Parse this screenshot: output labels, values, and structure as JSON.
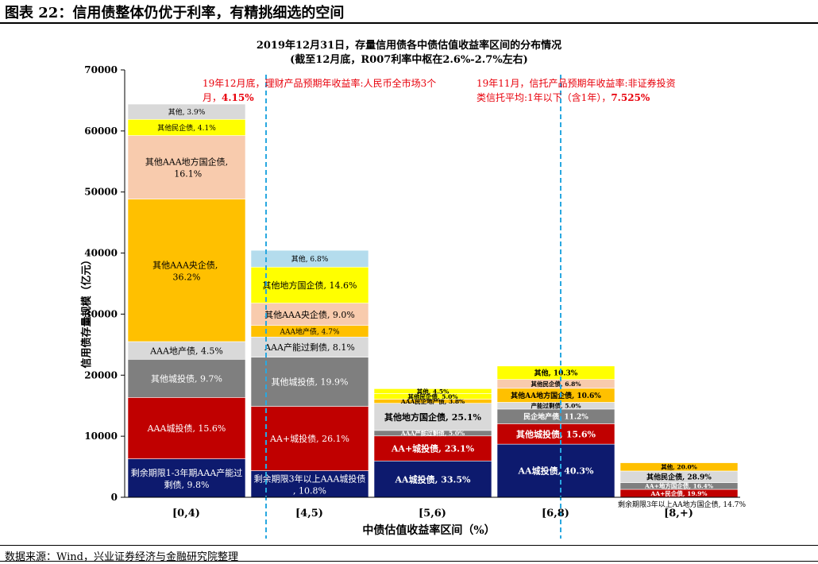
{
  "figure": {
    "title": "图表 22：信用债整体仍优于利率，有精挑细选的空间",
    "source": "数据来源：Wind，兴业证券经济与金融研究院整理"
  },
  "chart_data": {
    "type": "bar",
    "stacked": true,
    "title": "2019年12月31日，存量信用债各中债估值收益率区间的分布情况",
    "subtitle": "(截至12月底，R007利率中枢在2.6%-2.7%左右)",
    "xlabel": "中债估值收益率区间（%）",
    "ylabel": "信用债存量规模（亿元）",
    "ylim": [
      0,
      70000
    ],
    "yticks": [
      0,
      10000,
      20000,
      30000,
      40000,
      50000,
      60000,
      70000
    ],
    "grid": false,
    "legend": "none",
    "colors": {
      "navy": "#0d1a6e",
      "red": "#c00000",
      "grey": "#7f7f7f",
      "lightgrey": "#d9d9d9",
      "orange": "#ffc000",
      "peach": "#f8cbad",
      "yellow": "#ffff00",
      "lightblue": "#b4dced",
      "refline": "#29a8e0",
      "annotation": "#e8000b"
    },
    "categories": [
      "[0,4)",
      "[4,5)",
      "[5,6)",
      "[6,8)",
      "[8,+)"
    ],
    "stacks": [
      {
        "category": "[0,4)",
        "segments": [
          {
            "label": "剩余期限1-3年期AAA产能过剩债, 9.8%",
            "value": 6300,
            "color": "navy",
            "text_color": "#ffffff"
          },
          {
            "label": "AAA城投债, 15.6%",
            "value": 10050,
            "color": "red",
            "text_color": "#ffffff"
          },
          {
            "label": "其他城投债, 9.7%",
            "value": 6250,
            "color": "grey",
            "text_color": "#ffffff"
          },
          {
            "label": "AAA地产债, 4.5%",
            "value": 2900,
            "color": "lightgrey",
            "text_color": "#000000"
          },
          {
            "label": "其他AAA央企债, 36.2%",
            "value": 23350,
            "color": "orange",
            "text_color": "#000000"
          },
          {
            "label": "其他AAA地方国企债, 16.1%",
            "value": 10400,
            "color": "peach",
            "text_color": "#000000"
          },
          {
            "label": "其他民企债, 4.1%",
            "value": 2650,
            "color": "yellow",
            "text_color": "#000000"
          },
          {
            "label": "其他, 3.9%",
            "value": 2500,
            "color": "lightgrey",
            "text_color": "#000000"
          }
        ]
      },
      {
        "category": "[4,5)",
        "segments": [
          {
            "label": "剩余期限3年以上AAA城投债, 10.8%",
            "value": 4350,
            "color": "navy",
            "text_color": "#ffffff"
          },
          {
            "label": "AA+城投债, 26.1%",
            "value": 10550,
            "color": "red",
            "text_color": "#ffffff"
          },
          {
            "label": "其他城投债, 19.9%",
            "value": 8050,
            "color": "grey",
            "text_color": "#ffffff"
          },
          {
            "label": "AAA产能过剩债, 8.1%",
            "value": 3300,
            "color": "lightgrey",
            "text_color": "#000000"
          },
          {
            "label": "AAA地产债, 4.7%",
            "value": 1900,
            "color": "orange",
            "text_color": "#000000"
          },
          {
            "label": "其他AAA央企债, 9.0%",
            "value": 3650,
            "color": "peach",
            "text_color": "#000000"
          },
          {
            "label": "其他地方国企债, 14.6%",
            "value": 5900,
            "color": "yellow",
            "text_color": "#000000"
          },
          {
            "label": "其他, 6.8%",
            "value": 2750,
            "color": "lightblue",
            "text_color": "#000000"
          }
        ]
      },
      {
        "category": "[5,6)",
        "segments": [
          {
            "label": "AA城投债, 33.5%",
            "value": 5950,
            "color": "navy",
            "text_color": "#ffffff"
          },
          {
            "label": "AA+城投债, 23.1%",
            "value": 4100,
            "color": "red",
            "text_color": "#ffffff"
          },
          {
            "label": "AAA产能过剩债, 5.0%",
            "value": 900,
            "color": "grey",
            "text_color": "#ffffff"
          },
          {
            "label": "其他地方国企债, 25.1%",
            "value": 4450,
            "color": "lightgrey",
            "text_color": "#000000"
          },
          {
            "label": "AAA民企地产债, 3.8%",
            "value": 680,
            "color": "orange",
            "text_color": "#000000"
          },
          {
            "label": "其他民企债, 5.0%",
            "value": 900,
            "color": "yellow",
            "text_color": "#000000"
          },
          {
            "label": "其他, 4.5%",
            "value": 800,
            "color": "yellow",
            "text_color": "#000000"
          }
        ]
      },
      {
        "category": "[6,8)",
        "segments": [
          {
            "label": "AA城投债, 40.3%",
            "value": 8700,
            "color": "navy",
            "text_color": "#ffffff"
          },
          {
            "label": "其他城投债, 15.6%",
            "value": 3350,
            "color": "red",
            "text_color": "#ffffff"
          },
          {
            "label": "民企地产债, 11.2%",
            "value": 2400,
            "color": "grey",
            "text_color": "#ffffff"
          },
          {
            "label": "产能过剩债, 5.0%",
            "value": 1100,
            "color": "lightgrey",
            "text_color": "#000000"
          },
          {
            "label": "其他AA地方国企债, 10.6%",
            "value": 2300,
            "color": "orange",
            "text_color": "#000000"
          },
          {
            "label": "其他民企债, 6.8%",
            "value": 1450,
            "color": "peach",
            "text_color": "#000000"
          },
          {
            "label": "其他, 10.3%",
            "value": 2200,
            "color": "yellow",
            "text_color": "#000000"
          }
        ]
      },
      {
        "category": "[8,+)",
        "segments": [
          {
            "label": "剩余期限3年以上AA地方国企债, 14.7%",
            "value": 950,
            "color": "navy",
            "text_color": "#000000",
            "label_outside": true
          },
          {
            "label": "AA+民企债, 19.9%",
            "value": 1300,
            "color": "red",
            "text_color": "#ffffff"
          },
          {
            "label": "AA+地方国企债, 16.4%",
            "value": 1100,
            "color": "grey",
            "text_color": "#ffffff"
          },
          {
            "label": "其他民企债, 28.9%",
            "value": 1900,
            "color": "lightgrey",
            "text_color": "#000000"
          },
          {
            "label": "其他, 20.0%",
            "value": 1350,
            "color": "orange",
            "text_color": "#000000"
          }
        ]
      }
    ],
    "reference_lines": [
      {
        "label": "19年12月底，理财产品预期年收益率:人民币全市场3个月，4.15%",
        "line1": "19年12月底，理财产品预期年收益率:人民币全市场3个",
        "line2_plain": "月，",
        "line2_bold": "4.15%",
        "x_position_category": "between [0,4) and [4,5)"
      },
      {
        "label": "19年11月，信托产品预期年收益率:非证券投资类信托平均:1年以下（含1年），7.525%",
        "line1": "19年11月，信托产品预期年收益率:非证券投资",
        "line2_plain": "类信托平均:1年以下（含1年），",
        "line2_bold": "7.525%",
        "x_position_category": "within [6,8)"
      }
    ]
  }
}
